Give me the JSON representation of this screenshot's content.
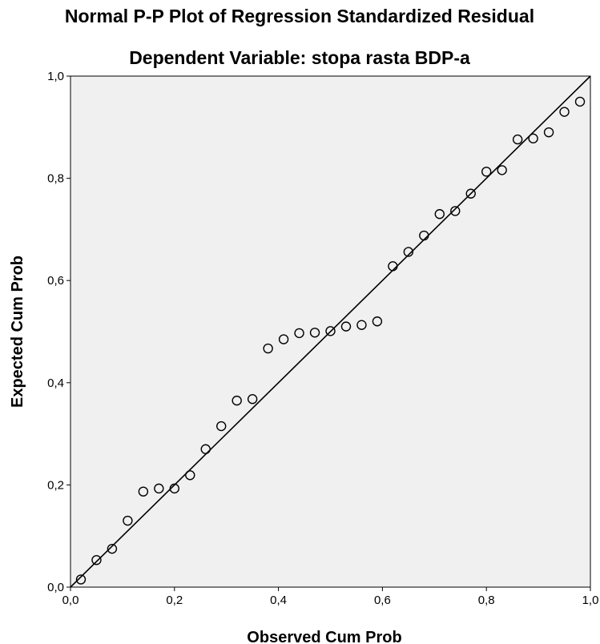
{
  "chart_data": {
    "type": "scatter",
    "title": "Normal P-P Plot of Regression Standardized Residual",
    "subtitle": "Dependent Variable: stopa rasta BDP-a",
    "xlabel": "Observed Cum Prob",
    "ylabel": "Expected Cum Prob",
    "xlim": [
      0,
      1
    ],
    "ylim": [
      0,
      1
    ],
    "x_ticks": [
      "0,0",
      "0,2",
      "0,4",
      "0,6",
      "0,8",
      "1,0"
    ],
    "y_ticks": [
      "0,0",
      "0,2",
      "0,4",
      "0,6",
      "0,8",
      "1,0"
    ],
    "x_tick_values": [
      0,
      0.2,
      0.4,
      0.6,
      0.8,
      1.0
    ],
    "y_tick_values": [
      0,
      0.2,
      0.4,
      0.6,
      0.8,
      1.0
    ],
    "grid": false,
    "reference_line": {
      "from": [
        0,
        0
      ],
      "to": [
        1,
        1
      ]
    },
    "points": [
      {
        "x": 0.02,
        "y": 0.015
      },
      {
        "x": 0.05,
        "y": 0.053
      },
      {
        "x": 0.08,
        "y": 0.075
      },
      {
        "x": 0.11,
        "y": 0.13
      },
      {
        "x": 0.14,
        "y": 0.187
      },
      {
        "x": 0.17,
        "y": 0.193
      },
      {
        "x": 0.2,
        "y": 0.193
      },
      {
        "x": 0.23,
        "y": 0.219
      },
      {
        "x": 0.26,
        "y": 0.27
      },
      {
        "x": 0.29,
        "y": 0.315
      },
      {
        "x": 0.32,
        "y": 0.365
      },
      {
        "x": 0.35,
        "y": 0.368
      },
      {
        "x": 0.38,
        "y": 0.467
      },
      {
        "x": 0.41,
        "y": 0.485
      },
      {
        "x": 0.44,
        "y": 0.497
      },
      {
        "x": 0.47,
        "y": 0.498
      },
      {
        "x": 0.5,
        "y": 0.501
      },
      {
        "x": 0.53,
        "y": 0.51
      },
      {
        "x": 0.56,
        "y": 0.513
      },
      {
        "x": 0.59,
        "y": 0.52
      },
      {
        "x": 0.62,
        "y": 0.628
      },
      {
        "x": 0.65,
        "y": 0.656
      },
      {
        "x": 0.68,
        "y": 0.688
      },
      {
        "x": 0.71,
        "y": 0.73
      },
      {
        "x": 0.74,
        "y": 0.736
      },
      {
        "x": 0.77,
        "y": 0.77
      },
      {
        "x": 0.8,
        "y": 0.813
      },
      {
        "x": 0.83,
        "y": 0.816
      },
      {
        "x": 0.86,
        "y": 0.876
      },
      {
        "x": 0.89,
        "y": 0.878
      },
      {
        "x": 0.92,
        "y": 0.89
      },
      {
        "x": 0.95,
        "y": 0.93
      },
      {
        "x": 0.98,
        "y": 0.95
      }
    ],
    "colors": {
      "plot_background": "#f0f0f0",
      "marker_stroke": "#000000",
      "line": "#000000"
    }
  }
}
